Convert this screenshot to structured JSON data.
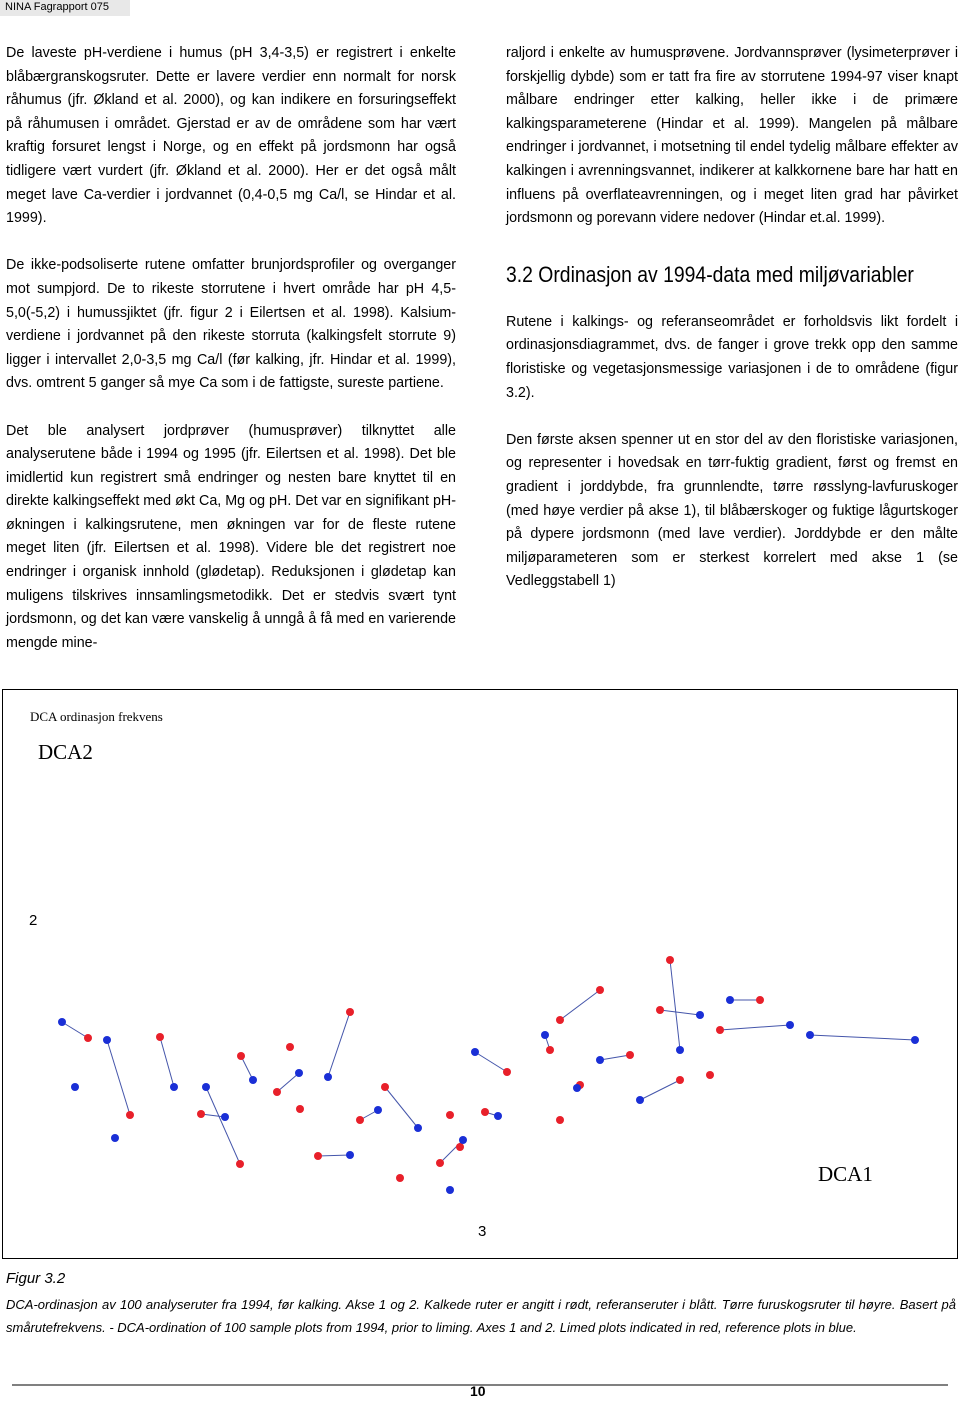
{
  "header": {
    "title": "NINA Fagrapport 075"
  },
  "left_column": {
    "paragraphs": [
      "De laveste pH-verdiene i humus (pH 3,4-3,5) er registrert i enkelte blåbærgranskogsruter. Dette er lavere verdier enn normalt for norsk råhumus (jfr. Økland et al. 2000), og kan indikere en forsuringseffekt på råhumusen i området. Gjerstad er av de områdene som har vært kraftig forsuret lengst i Norge, og en effekt på jordsmonn har også tidligere vært vurdert (jfr. Økland et al. 2000). Her er det også målt meget lave Ca-verdier i jordvannet (0,4-0,5 mg Ca/l, se Hindar et al. 1999).",
      "De ikke-podsoliserte rutene omfatter brunjordsprofiler og overganger mot sumpjord. De to rikeste storrutene i hvert område har pH 4,5-5,0(-5,2) i humussjiktet (jfr. figur 2 i Eilertsen et al. 1998). Kalsium-verdiene i jordvannet på den rikeste storruta (kalkingsfelt storrute 9) ligger i intervallet 2,0-3,5 mg Ca/l (før kalking, jfr. Hindar et al. 1999), dvs. omtrent 5 ganger så mye Ca som i de fattigste, sureste partiene.",
      "Det ble analysert jordprøver (humusprøver) tilknyttet alle analyserutene både i 1994 og 1995 (jfr. Eilertsen et al. 1998). Det ble imidlertid kun registrert små endringer og nesten bare knyttet til en direkte kalkingseffekt med økt Ca, Mg og pH. Det var en signifikant pH-økningen i kalkingsrutene, men økningen var for de fleste rutene meget liten (jfr. Eilertsen et al. 1998). Videre ble det registrert noe endringer i organisk innhold (glødetap). Reduksjonen i glødetap kan muligens tilskrives innsamlingsmetodikk. Det er stedvis svært tynt jordsmonn, og det kan være vanskelig å unngå å få med en varierende mengde mine-"
    ]
  },
  "right_column": {
    "paragraph_before": "raljord i enkelte av humusprøvene. Jordvannsprøver (lysimeterprøver i forskjellig dybde) som er tatt fra fire av storrutene 1994-97 viser knapt målbare endringer etter kalking, heller ikke i de primære kalkingsparameterene (Hindar et al. 1999). Mangelen på målbare endringer i jordvannet, i motsetning til endel tydelig målbare effekter av kalkingen i avrenningsvannet, indikerer at kalkkornene bare har hatt en influens på overflateavrenningen, og i meget liten grad har påvirket jordsmonn og porevann videre nedover (Hindar et.al. 1999).",
    "section_heading": "3.2 Ordinasjon av 1994-data med miljøvariabler",
    "paragraphs": [
      "Rutene i kalkings- og referanseområdet er forholdsvis likt fordelt i ordinasjonsdiagrammet, dvs. de fanger i grove trekk opp den samme floristiske og vegetasjonsmessige variasjonen i de to områdene (figur 3.2).",
      "Den første aksen spenner ut en stor del av den floristiske variasjonen, og representer i hovedsak en tørr-fuktig gradient, først og fremst en gradient i jorddybde, fra grunnlendte, tørre røsslyng-lavfuruskoger (med høye verdier på akse 1), til blåbærskoger og fuktige lågurtskoger på dypere jordsmonn (med lave verdier). Jorddybde er den målte miljøparameteren som er sterkest korrelert med akse 1 (se Vedleggstabell 1)"
    ]
  },
  "figure": {
    "title": "DCA ordinasjon frekvens",
    "y_axis_label": "DCA2",
    "y_tick": "2",
    "x_axis_label": "DCA1",
    "x_tick": "3"
  },
  "caption": {
    "label": "Figur 3.2",
    "text": "DCA-ordinasjon av 100 analyseruter fra 1994, før kalking. Akse 1 og 2. Kalkede ruter er angitt i rødt, referanseruter i blått. Tørre furuskogsruter til høyre. Basert på smårutefrekvens. - DCA-ordination of 100 sample plots from 1994, prior to liming. Axes 1 and 2. Limed plots indicated in red, reference plots in blue."
  },
  "footer": {
    "page_number": "10"
  }
}
